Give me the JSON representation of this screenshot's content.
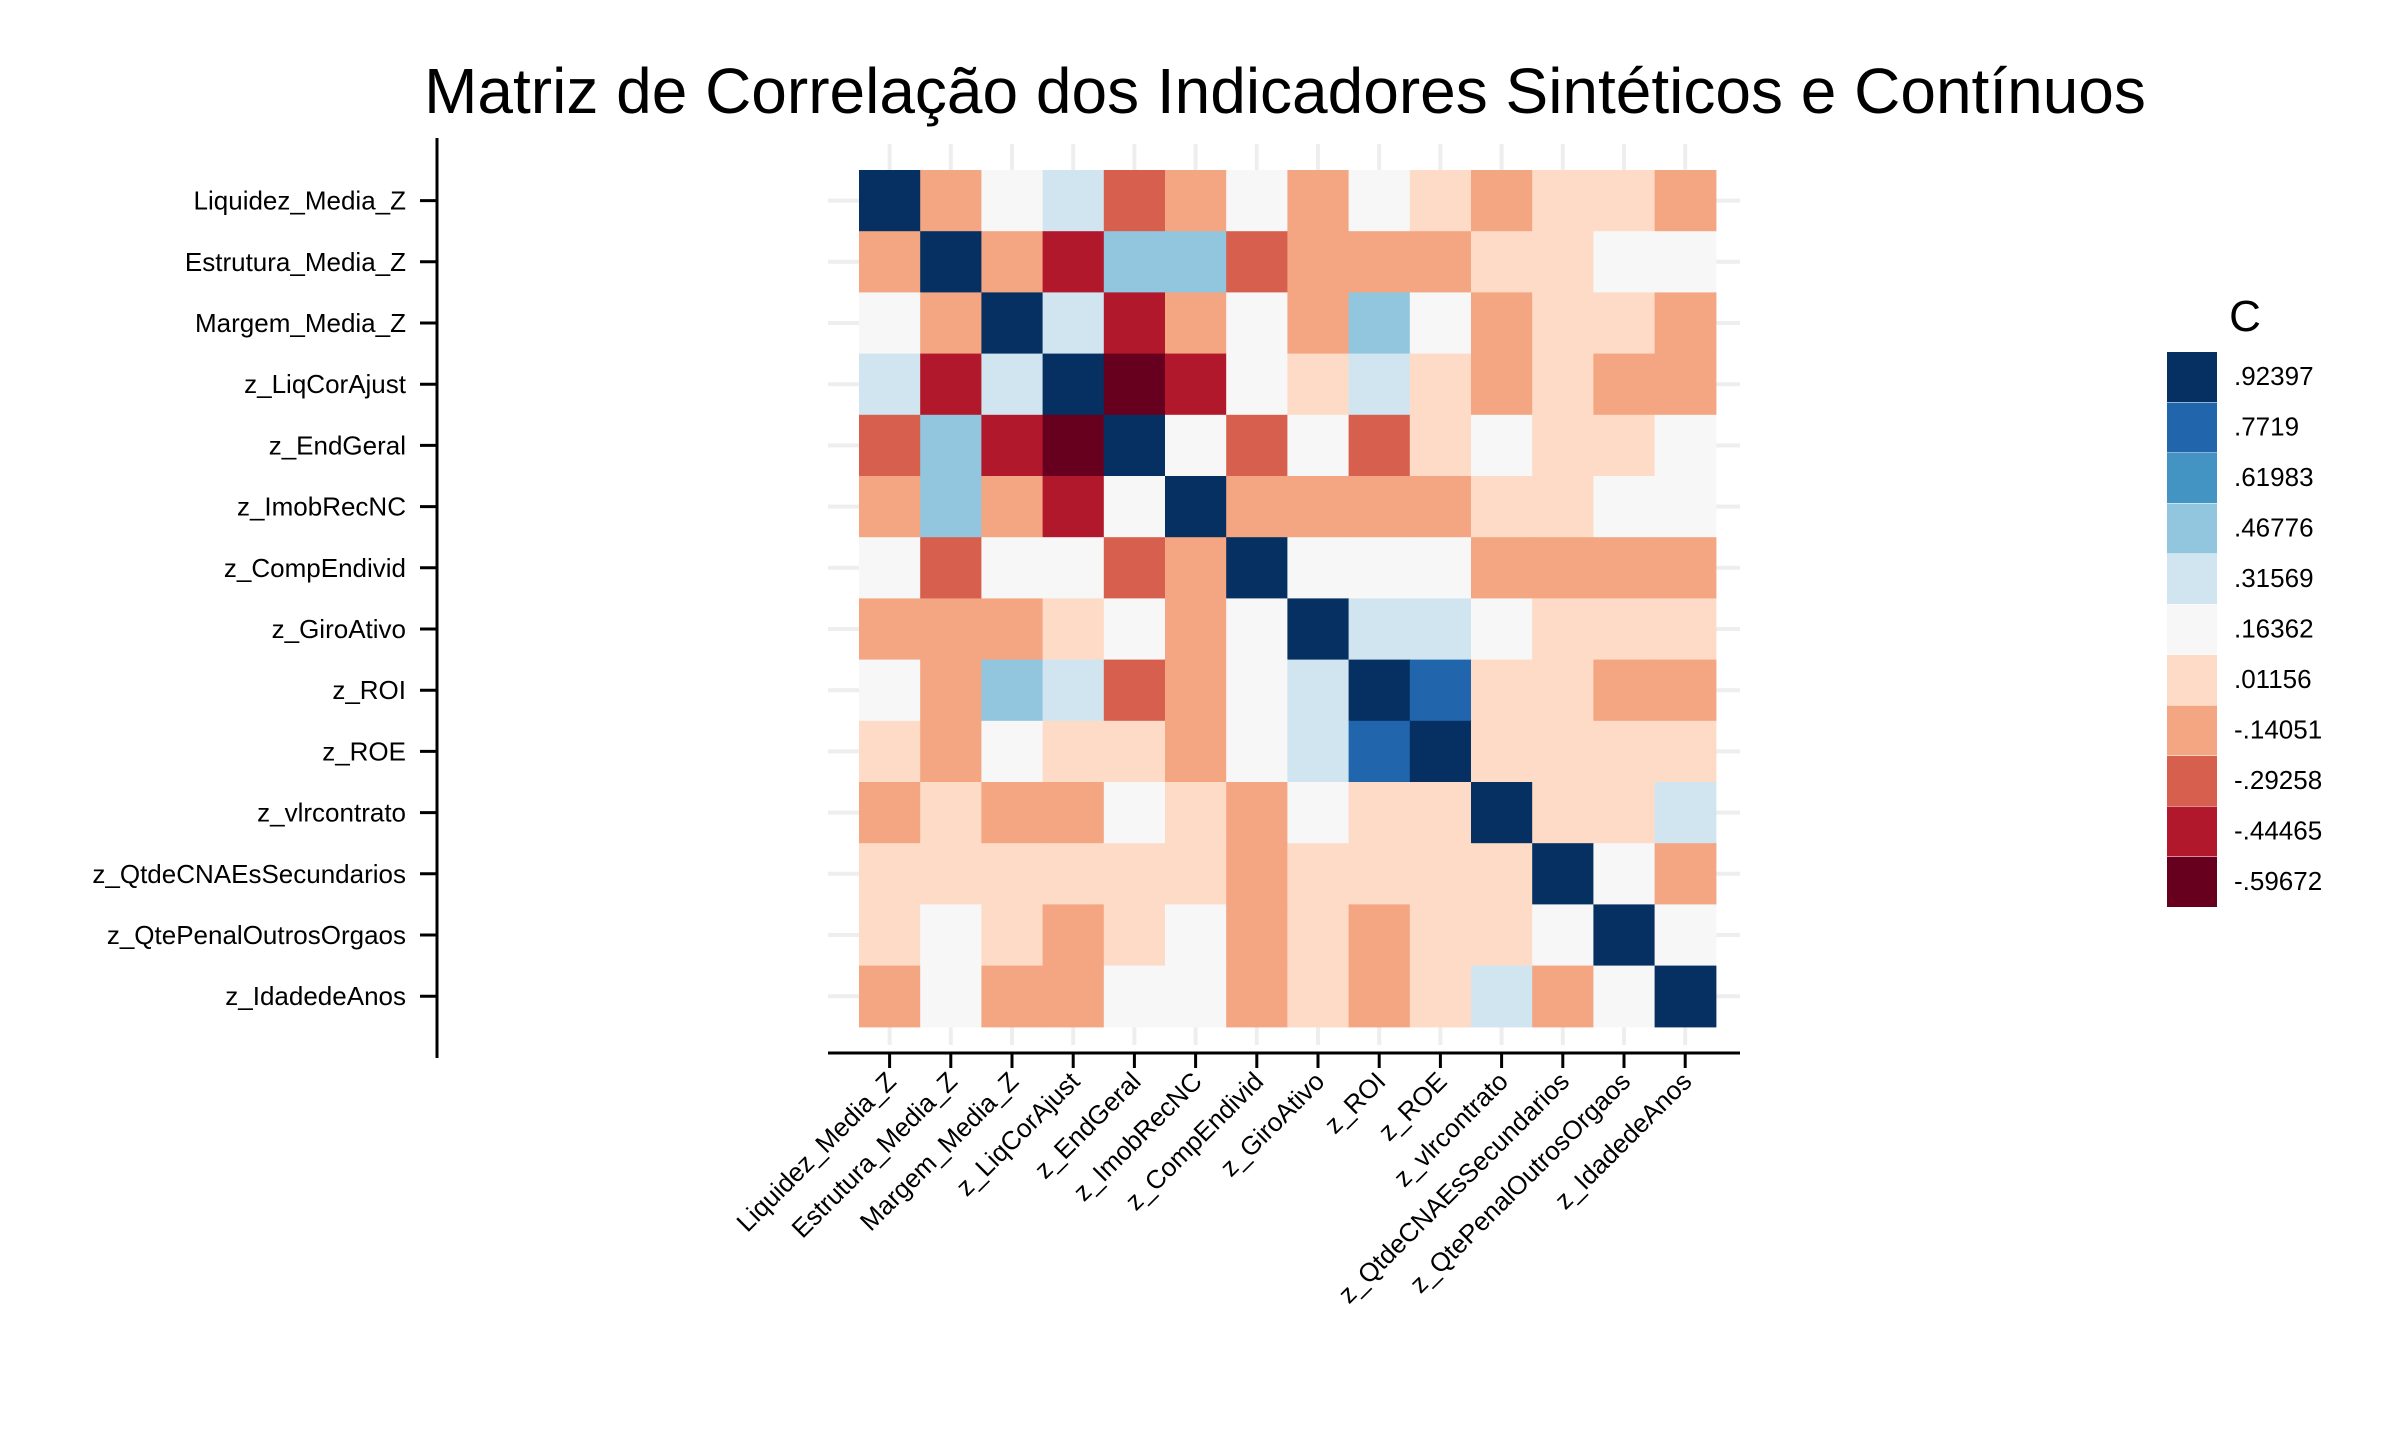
{
  "chart_data": {
    "type": "heatmap",
    "title": "Matriz de Correlação dos Indicadores Sintéticos e Contínuos",
    "row_labels": [
      "Liquidez_Media_Z",
      "Estrutura_Media_Z",
      "Margem_Media_Z",
      "z_LiqCorAjust",
      "z_EndGeral",
      "z_ImobRecNC",
      "z_CompEndivid",
      "z_GiroAtivo",
      "z_ROI",
      "z_ROE",
      "z_vlrcontrato",
      "z_QtdeCNAEsSecundarios",
      "z_QtePenalOutrosOrgaos",
      "z_IdadedeAnos"
    ],
    "col_labels": [
      "Liquidez_Media_Z",
      "Estrutura_Media_Z",
      "Margem_Media_Z",
      "z_LiqCorAjust",
      "z_EndGeral",
      "z_ImobRecNC",
      "z_CompEndivid",
      "z_GiroAtivo",
      "z_ROI",
      "z_ROE",
      "z_vlrcontrato",
      "z_QtdeCNAEsSecundarios",
      "z_QtePenalOutrosOrgaos",
      "z_IdadedeAnos"
    ],
    "bins": [
      {
        "label": ".92397",
        "color": "#053061"
      },
      {
        "label": ".7719",
        "color": "#2166ac"
      },
      {
        "label": ".61983",
        "color": "#4393c3"
      },
      {
        "label": ".46776",
        "color": "#92c5de"
      },
      {
        "label": ".31569",
        "color": "#d1e5f0"
      },
      {
        "label": ".16362",
        "color": "#f7f7f7"
      },
      {
        "label": ".01156",
        "color": "#fddbc7"
      },
      {
        "label": "-.14051",
        "color": "#f4a582"
      },
      {
        "label": "-.29258",
        "color": "#d6604d"
      },
      {
        "label": "-.44465",
        "color": "#b2182b"
      },
      {
        "label": "-.59672",
        "color": "#67001f"
      }
    ],
    "cell_bins": [
      [
        0,
        7,
        5,
        4,
        8,
        7,
        5,
        7,
        5,
        6,
        7,
        6,
        6,
        7
      ],
      [
        7,
        0,
        7,
        9,
        3,
        3,
        8,
        7,
        7,
        7,
        6,
        6,
        5,
        5
      ],
      [
        5,
        7,
        0,
        4,
        9,
        7,
        5,
        7,
        3,
        5,
        7,
        6,
        6,
        7
      ],
      [
        4,
        9,
        4,
        0,
        10,
        9,
        5,
        6,
        4,
        6,
        7,
        6,
        7,
        7
      ],
      [
        8,
        3,
        9,
        10,
        0,
        5,
        8,
        5,
        8,
        6,
        5,
        6,
        6,
        5
      ],
      [
        7,
        3,
        7,
        9,
        5,
        0,
        7,
        7,
        7,
        7,
        6,
        6,
        5,
        5
      ],
      [
        5,
        8,
        5,
        5,
        8,
        7,
        0,
        5,
        5,
        5,
        7,
        7,
        7,
        7
      ],
      [
        7,
        7,
        7,
        6,
        5,
        7,
        5,
        0,
        4,
        4,
        5,
        6,
        6,
        6
      ],
      [
        5,
        7,
        3,
        4,
        8,
        7,
        5,
        4,
        0,
        1,
        6,
        6,
        7,
        7
      ],
      [
        6,
        7,
        5,
        6,
        6,
        7,
        5,
        4,
        1,
        0,
        6,
        6,
        6,
        6
      ],
      [
        7,
        6,
        7,
        7,
        5,
        6,
        7,
        5,
        6,
        6,
        0,
        6,
        6,
        4
      ],
      [
        6,
        6,
        6,
        6,
        6,
        6,
        7,
        6,
        6,
        6,
        6,
        0,
        5,
        7
      ],
      [
        6,
        5,
        6,
        7,
        6,
        5,
        7,
        6,
        7,
        6,
        6,
        5,
        0,
        5
      ],
      [
        7,
        5,
        7,
        7,
        5,
        5,
        7,
        6,
        7,
        6,
        4,
        7,
        5,
        0
      ]
    ],
    "legend": {
      "title": "C",
      "position": "right"
    },
    "grid": true
  }
}
